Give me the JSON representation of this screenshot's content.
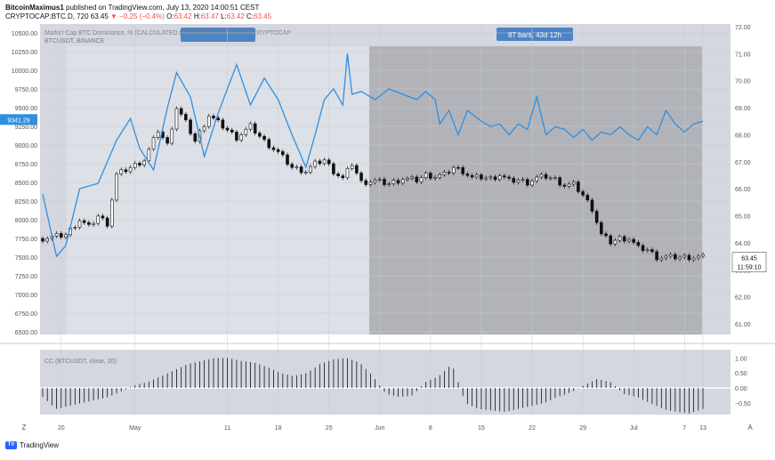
{
  "header": {
    "publisher": "BitcoinMaximus1",
    "published_text": "published on TradingView.com, July 13, 2020 14:00:51 CEST",
    "symbol": "CRYPTOCAP:BTC.D, 720",
    "last": "63.45",
    "change": "−0.25 (−0.4%)",
    "o_label": "O:",
    "o_val": "63.42",
    "h_label": "H:",
    "h_val": "63.47",
    "l_label": "L:",
    "l_val": "63.42",
    "c_label": "C:",
    "c_val": "63.45"
  },
  "chart_data": {
    "type": "candlestick+line",
    "overlay_title": "Market Cap BTC Dominance, % (CALCULATED BY TRADINGVIEW), 12h, CRYPTOCAP",
    "overlay_symbol": "BTCUSDT, BINANCE",
    "range_badge": "87 bars, 43d 12h",
    "left_axis": {
      "ticks": [
        "10500.00",
        "10250.00",
        "10000.00",
        "9750.00",
        "9500.00",
        "9250.00",
        "9000.00",
        "8750.00",
        "8500.00",
        "8250.00",
        "8000.00",
        "7750.00",
        "7500.00",
        "7250.00",
        "7000.00",
        "6750.00",
        "6500.00"
      ],
      "range": [
        6500,
        10500
      ],
      "current": "9341.29"
    },
    "right_axis": {
      "ticks": [
        "72.00",
        "71.00",
        "70.00",
        "69.00",
        "68.00",
        "67.00",
        "66.00",
        "65.00",
        "64.00",
        "63.00",
        "62.00",
        "61.00"
      ],
      "range": [
        60.5,
        72
      ],
      "current": "63.45",
      "countdown": "11:59:10"
    },
    "x_labels": [
      "20",
      "May",
      "11",
      "18",
      "25",
      "Jun",
      "8",
      "15",
      "22",
      "29",
      "Jul",
      "7",
      "13"
    ],
    "btc_dominance_points": [
      [
        0,
        65.8
      ],
      [
        3,
        63.5
      ],
      [
        5,
        63.9
      ],
      [
        8,
        66.0
      ],
      [
        12,
        66.2
      ],
      [
        16,
        67.8
      ],
      [
        19,
        68.6
      ],
      [
        21,
        67.5
      ],
      [
        24,
        66.7
      ],
      [
        27,
        69.0
      ],
      [
        29,
        70.3
      ],
      [
        32,
        69.4
      ],
      [
        35,
        67.2
      ],
      [
        38,
        68.8
      ],
      [
        42,
        70.6
      ],
      [
        45,
        69.1
      ],
      [
        48,
        70.1
      ],
      [
        51,
        69.3
      ],
      [
        54,
        68.0
      ],
      [
        57,
        66.8
      ],
      [
        59,
        68.0
      ],
      [
        61,
        69.3
      ],
      [
        63,
        69.7
      ],
      [
        65,
        69.1
      ],
      [
        66,
        71.0
      ],
      [
        67,
        69.5
      ],
      [
        69,
        69.6
      ],
      [
        72,
        69.3
      ],
      [
        75,
        69.7
      ],
      [
        78,
        69.5
      ],
      [
        81,
        69.3
      ],
      [
        83,
        69.6
      ],
      [
        85,
        69.3
      ],
      [
        86,
        68.4
      ],
      [
        88,
        68.9
      ],
      [
        90,
        68.0
      ],
      [
        92,
        68.9
      ],
      [
        95,
        68.5
      ],
      [
        97,
        68.3
      ],
      [
        99,
        68.4
      ],
      [
        101,
        68.0
      ],
      [
        103,
        68.4
      ],
      [
        105,
        68.2
      ],
      [
        107,
        69.4
      ],
      [
        109,
        68.0
      ],
      [
        111,
        68.3
      ],
      [
        113,
        68.2
      ],
      [
        115,
        67.9
      ],
      [
        117,
        68.2
      ],
      [
        119,
        67.8
      ],
      [
        121,
        68.1
      ],
      [
        123,
        68.0
      ],
      [
        125,
        68.3
      ],
      [
        127,
        68.0
      ],
      [
        129,
        67.8
      ],
      [
        131,
        68.3
      ],
      [
        133,
        68.0
      ],
      [
        135,
        68.9
      ],
      [
        137,
        68.4
      ],
      [
        139,
        68.1
      ],
      [
        141,
        68.4
      ],
      [
        143,
        68.5
      ]
    ],
    "btcusdt_close_points": [
      [
        0,
        7750
      ],
      [
        5,
        7800
      ],
      [
        8,
        8000
      ],
      [
        10,
        7900
      ],
      [
        12,
        8050
      ],
      [
        14,
        7950
      ],
      [
        16,
        8600
      ],
      [
        19,
        8700
      ],
      [
        22,
        8800
      ],
      [
        25,
        9200
      ],
      [
        27,
        9000
      ],
      [
        29,
        9500
      ],
      [
        31,
        9300
      ],
      [
        33,
        9050
      ],
      [
        36,
        9400
      ],
      [
        39,
        9250
      ],
      [
        42,
        9100
      ],
      [
        45,
        9250
      ],
      [
        48,
        9050
      ],
      [
        51,
        8900
      ],
      [
        54,
        8700
      ],
      [
        57,
        8650
      ],
      [
        59,
        8750
      ],
      [
        61,
        8800
      ],
      [
        63,
        8650
      ],
      [
        65,
        8550
      ],
      [
        67,
        8750
      ],
      [
        69,
        8500
      ],
      [
        72,
        8520
      ],
      [
        75,
        8480
      ],
      [
        78,
        8550
      ],
      [
        81,
        8530
      ],
      [
        83,
        8600
      ],
      [
        85,
        8580
      ],
      [
        87,
        8600
      ],
      [
        89,
        8700
      ],
      [
        91,
        8650
      ],
      [
        93,
        8560
      ],
      [
        95,
        8570
      ],
      [
        97,
        8550
      ],
      [
        99,
        8600
      ],
      [
        101,
        8520
      ],
      [
        103,
        8530
      ],
      [
        105,
        8500
      ],
      [
        107,
        8560
      ],
      [
        109,
        8580
      ],
      [
        111,
        8540
      ],
      [
        113,
        8460
      ],
      [
        115,
        8470
      ],
      [
        117,
        8330
      ],
      [
        119,
        8150
      ],
      [
        121,
        7800
      ],
      [
        123,
        7700
      ],
      [
        125,
        7750
      ],
      [
        127,
        7750
      ],
      [
        129,
        7620
      ],
      [
        131,
        7600
      ],
      [
        133,
        7500
      ]
    ],
    "oscillator": {
      "title": "CC (BTCUSDT, close, 20)",
      "ticks": [
        "1.00",
        "0.50",
        "0.00",
        "−0.50"
      ],
      "range": [
        -0.8,
        1.1
      ],
      "values": [
        -0.3,
        -0.7,
        -0.6,
        -0.5,
        -0.4,
        -0.3,
        -0.1,
        0.1,
        0.2,
        0.4,
        0.6,
        0.8,
        0.9,
        1.0,
        1.0,
        0.9,
        0.85,
        0.7,
        0.5,
        0.4,
        0.5,
        0.8,
        0.95,
        1.0,
        0.85,
        0.4,
        -0.2,
        -0.3,
        -0.25,
        0.2,
        0.4,
        0.8,
        -0.5,
        -0.7,
        -0.75,
        -0.8,
        -0.7,
        -0.6,
        -0.5,
        -0.3,
        -0.15,
        0.1,
        0.3,
        0.2,
        -0.2,
        -0.3,
        -0.5,
        -0.7,
        -0.8,
        -0.85,
        -0.7
      ]
    },
    "grid": true
  },
  "footer": {
    "brand": "TradingView"
  },
  "colors": {
    "dominance": "#2f8fe0",
    "candle": "#111111",
    "bg": "#d4d7df",
    "shade_light": "#dde0e6",
    "shade_dark": "#b1b3b9",
    "badge": "#4d84c6",
    "red": "#ef5350"
  }
}
